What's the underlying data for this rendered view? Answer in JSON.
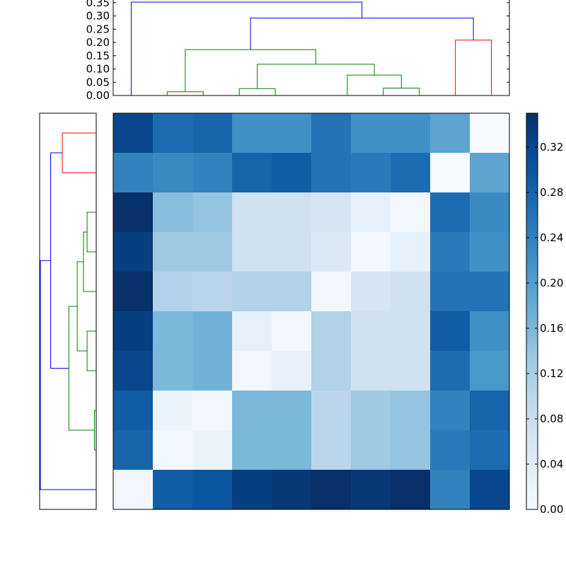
{
  "chart_data": [
    {
      "type": "heatmap",
      "panel": "heatmap",
      "title": "",
      "xlabel": "",
      "ylabel": "",
      "n_rows": 10,
      "n_cols": 10,
      "values": [
        [
          0.32,
          0.27,
          0.28,
          0.22,
          0.22,
          0.26,
          0.22,
          0.22,
          0.19,
          0.0
        ],
        [
          0.24,
          0.23,
          0.24,
          0.28,
          0.29,
          0.26,
          0.25,
          0.27,
          0.0,
          0.19
        ],
        [
          0.35,
          0.15,
          0.14,
          0.07,
          0.07,
          0.06,
          0.03,
          0.01,
          0.27,
          0.23
        ],
        [
          0.33,
          0.13,
          0.13,
          0.07,
          0.07,
          0.05,
          0.01,
          0.03,
          0.25,
          0.22
        ],
        [
          0.35,
          0.11,
          0.1,
          0.11,
          0.11,
          0.01,
          0.06,
          0.07,
          0.26,
          0.26
        ],
        [
          0.33,
          0.16,
          0.17,
          0.03,
          0.01,
          0.11,
          0.07,
          0.07,
          0.29,
          0.22
        ],
        [
          0.32,
          0.16,
          0.17,
          0.01,
          0.03,
          0.11,
          0.07,
          0.07,
          0.27,
          0.21
        ],
        [
          0.29,
          0.02,
          0.01,
          0.16,
          0.16,
          0.1,
          0.13,
          0.14,
          0.24,
          0.28
        ],
        [
          0.28,
          0.01,
          0.02,
          0.16,
          0.16,
          0.1,
          0.13,
          0.14,
          0.25,
          0.27
        ],
        [
          0.01,
          0.29,
          0.3,
          0.33,
          0.34,
          0.35,
          0.34,
          0.35,
          0.24,
          0.32
        ]
      ],
      "colormap": [
        "#f7fbff",
        "#deebf7",
        "#c6dbef",
        "#9ecae1",
        "#6baed6",
        "#4292c6",
        "#2171b5",
        "#08519c",
        "#08306b"
      ],
      "vmin": 0.0,
      "vmax": 0.35,
      "colorbar": {
        "ticks": [
          0.0,
          0.04,
          0.08,
          0.12,
          0.16,
          0.2,
          0.24,
          0.28,
          0.32
        ],
        "tick_labels": [
          "0.00",
          "0.04",
          "0.08",
          "0.12",
          "0.16",
          "0.20",
          "0.24",
          "0.28",
          "0.32"
        ]
      }
    },
    {
      "type": "dendrogram",
      "panel": "top-dendrogram",
      "orientation": "top",
      "ylim": [
        0,
        0.36
      ],
      "yticks": [
        0.0,
        0.05,
        0.1,
        0.15,
        0.2,
        0.25,
        0.3,
        0.35
      ],
      "ytick_labels": [
        "0.00",
        "0.05",
        "0.10",
        "0.15",
        "0.20",
        "0.25",
        "0.30",
        "0.35"
      ],
      "leaf_count": 10,
      "links": [
        {
          "left": 1.5,
          "right": 2.5,
          "height": 0.014,
          "left_base": 0,
          "right_base": 0,
          "color": "#008000"
        },
        {
          "left": 3.5,
          "right": 4.5,
          "height": 0.026,
          "left_base": 0,
          "right_base": 0,
          "color": "#008000"
        },
        {
          "left": 7.5,
          "right": 8.5,
          "height": 0.028,
          "left_base": 0,
          "right_base": 0,
          "color": "#008000"
        },
        {
          "left": 6.5,
          "right": 8.0,
          "height": 0.077,
          "left_base": 0,
          "right_base": 0.028,
          "color": "#008000"
        },
        {
          "left": 4.0,
          "right": 7.25,
          "height": 0.118,
          "left_base": 0.026,
          "right_base": 0.077,
          "color": "#008000"
        },
        {
          "left": 2.0,
          "right": 5.625,
          "height": 0.173,
          "left_base": 0.014,
          "right_base": 0.118,
          "color": "#008000"
        },
        {
          "left": 9.5,
          "right": 10.5,
          "height": 0.209,
          "left_base": 0,
          "right_base": 0,
          "color": "#ff0000"
        },
        {
          "left": 3.8125,
          "right": 10.0,
          "height": 0.292,
          "left_base": 0.173,
          "right_base": 0.209,
          "color": "#0000ff"
        },
        {
          "left": 0.5,
          "right": 6.90625,
          "height": 0.352,
          "left_base": 0,
          "right_base": 0.292,
          "color": "#0000ff"
        }
      ]
    },
    {
      "type": "dendrogram",
      "panel": "left-dendrogram",
      "orientation": "left",
      "leaf_count": 10,
      "links": [
        {
          "top": 0.5,
          "bottom": 1.5,
          "height": 0.216,
          "top_base": 0,
          "bottom_base": 0,
          "color": "#ff0000"
        },
        {
          "top": 2.5,
          "bottom": 3.5,
          "height": 0.058,
          "top_base": 0,
          "bottom_base": 0,
          "color": "#008000"
        },
        {
          "top": 3.0,
          "bottom": 4.5,
          "height": 0.081,
          "top_base": 0.058,
          "bottom_base": 0,
          "color": "#008000"
        },
        {
          "top": 5.5,
          "bottom": 6.5,
          "height": 0.058,
          "top_base": 0,
          "bottom_base": 0,
          "color": "#008000"
        },
        {
          "top": 3.75,
          "bottom": 6.0,
          "height": 0.121,
          "top_base": 0.081,
          "bottom_base": 0.058,
          "color": "#008000"
        },
        {
          "top": 7.5,
          "bottom": 8.5,
          "height": 0.011,
          "top_base": 0,
          "bottom_base": 0,
          "color": "#008000"
        },
        {
          "top": 4.875,
          "bottom": 8.0,
          "height": 0.174,
          "top_base": 0.121,
          "bottom_base": 0.011,
          "color": "#008000"
        },
        {
          "top": 1.0,
          "bottom": 6.4375,
          "height": 0.29,
          "top_base": 0.216,
          "bottom_base": 0.174,
          "color": "#0000ff"
        },
        {
          "top": 3.71875,
          "bottom": 9.5,
          "height": 0.355,
          "top_base": 0.29,
          "bottom_base": 0,
          "color": "#0000ff"
        }
      ],
      "xlim": [
        0.36,
        0
      ]
    }
  ]
}
